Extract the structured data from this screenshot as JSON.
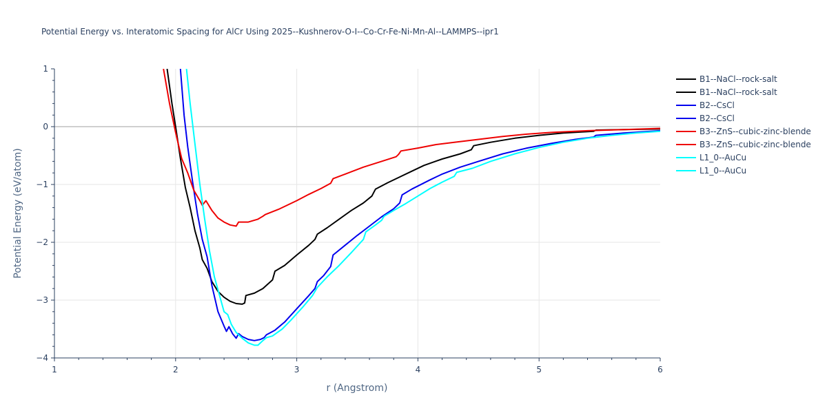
{
  "chart_data": {
    "type": "line",
    "title": "Potential Energy vs. Interatomic Spacing for AlCr Using 2025--Kushnerov-O-I--Co-Cr-Fe-Ni-Mn-Al--LAMMPS--ipr1",
    "xlabel": "r (Angstrom)",
    "ylabel": "Potential Energy (eV/atom)",
    "xlim": [
      1,
      6
    ],
    "ylim": [
      -4,
      1
    ],
    "x_ticks": [
      "1",
      "2",
      "3",
      "4",
      "5",
      "6"
    ],
    "y_ticks": [
      "1",
      "0",
      "−1",
      "−2",
      "−3",
      "−4"
    ],
    "x_tick_values": [
      1,
      2,
      3,
      4,
      5,
      6
    ],
    "y_tick_values": [
      1,
      0,
      -1,
      -2,
      -3,
      -4
    ],
    "grid": true,
    "legend_position": "top-right",
    "series": [
      {
        "name": "B1--NaCl--rock-salt",
        "color": "#000000",
        "points": [
          [
            1.93,
            1.0
          ],
          [
            1.97,
            0.4
          ],
          [
            2.0,
            0.0
          ],
          [
            2.04,
            -0.55
          ],
          [
            2.08,
            -1.05
          ],
          [
            2.12,
            -1.4
          ],
          [
            2.16,
            -1.8
          ],
          [
            2.2,
            -2.1
          ],
          [
            2.22,
            -2.3
          ],
          [
            2.26,
            -2.45
          ],
          [
            2.3,
            -2.68
          ],
          [
            2.35,
            -2.85
          ],
          [
            2.4,
            -2.95
          ],
          [
            2.45,
            -3.02
          ],
          [
            2.5,
            -3.06
          ],
          [
            2.55,
            -3.07
          ],
          [
            2.57,
            -3.05
          ],
          [
            2.58,
            -2.92
          ],
          [
            2.65,
            -2.88
          ],
          [
            2.72,
            -2.8
          ],
          [
            2.8,
            -2.65
          ],
          [
            2.82,
            -2.5
          ],
          [
            2.9,
            -2.4
          ],
          [
            3.0,
            -2.22
          ],
          [
            3.1,
            -2.05
          ],
          [
            3.15,
            -1.95
          ],
          [
            3.17,
            -1.86
          ],
          [
            3.25,
            -1.75
          ],
          [
            3.35,
            -1.6
          ],
          [
            3.45,
            -1.45
          ],
          [
            3.55,
            -1.32
          ],
          [
            3.62,
            -1.2
          ],
          [
            3.65,
            -1.08
          ],
          [
            3.75,
            -0.97
          ],
          [
            3.85,
            -0.87
          ],
          [
            3.95,
            -0.77
          ],
          [
            4.05,
            -0.67
          ],
          [
            4.2,
            -0.56
          ],
          [
            4.35,
            -0.47
          ],
          [
            4.44,
            -0.4
          ],
          [
            4.46,
            -0.33
          ],
          [
            4.6,
            -0.27
          ],
          [
            4.8,
            -0.2
          ],
          [
            5.0,
            -0.15
          ],
          [
            5.2,
            -0.11
          ],
          [
            5.45,
            -0.08
          ],
          [
            5.47,
            -0.06
          ],
          [
            5.7,
            -0.05
          ],
          [
            6.0,
            -0.04
          ]
        ]
      },
      {
        "name": "B1--NaCl--rock-salt",
        "color": "#000000",
        "points": []
      },
      {
        "name": "B2--CsCl",
        "color": "#0000ee",
        "points": [
          [
            2.04,
            1.0
          ],
          [
            2.07,
            0.2
          ],
          [
            2.1,
            -0.35
          ],
          [
            2.14,
            -0.95
          ],
          [
            2.18,
            -1.5
          ],
          [
            2.22,
            -1.95
          ],
          [
            2.26,
            -2.25
          ],
          [
            2.3,
            -2.75
          ],
          [
            2.35,
            -3.2
          ],
          [
            2.4,
            -3.45
          ],
          [
            2.42,
            -3.54
          ],
          [
            2.44,
            -3.46
          ],
          [
            2.47,
            -3.58
          ],
          [
            2.5,
            -3.66
          ],
          [
            2.52,
            -3.58
          ],
          [
            2.55,
            -3.63
          ],
          [
            2.6,
            -3.68
          ],
          [
            2.65,
            -3.7
          ],
          [
            2.7,
            -3.68
          ],
          [
            2.73,
            -3.65
          ],
          [
            2.75,
            -3.6
          ],
          [
            2.82,
            -3.52
          ],
          [
            2.9,
            -3.38
          ],
          [
            3.0,
            -3.15
          ],
          [
            3.1,
            -2.92
          ],
          [
            3.15,
            -2.8
          ],
          [
            3.17,
            -2.68
          ],
          [
            3.22,
            -2.58
          ],
          [
            3.28,
            -2.42
          ],
          [
            3.3,
            -2.22
          ],
          [
            3.4,
            -2.05
          ],
          [
            3.5,
            -1.88
          ],
          [
            3.6,
            -1.72
          ],
          [
            3.7,
            -1.56
          ],
          [
            3.8,
            -1.42
          ],
          [
            3.85,
            -1.32
          ],
          [
            3.87,
            -1.18
          ],
          [
            3.95,
            -1.08
          ],
          [
            4.1,
            -0.92
          ],
          [
            4.2,
            -0.82
          ],
          [
            4.35,
            -0.7
          ],
          [
            4.5,
            -0.6
          ],
          [
            4.7,
            -0.47
          ],
          [
            4.9,
            -0.37
          ],
          [
            5.1,
            -0.29
          ],
          [
            5.3,
            -0.22
          ],
          [
            5.45,
            -0.18
          ],
          [
            5.47,
            -0.15
          ],
          [
            5.7,
            -0.11
          ],
          [
            6.0,
            -0.07
          ]
        ]
      },
      {
        "name": "B2--CsCl",
        "color": "#0000ee",
        "points": []
      },
      {
        "name": "B3--ZnS--cubic-zinc-blende",
        "color": "#ee0000",
        "points": [
          [
            1.9,
            1.0
          ],
          [
            1.95,
            0.4
          ],
          [
            2.0,
            -0.1
          ],
          [
            2.05,
            -0.55
          ],
          [
            2.1,
            -0.8
          ],
          [
            2.15,
            -1.1
          ],
          [
            2.2,
            -1.28
          ],
          [
            2.22,
            -1.36
          ],
          [
            2.25,
            -1.28
          ],
          [
            2.3,
            -1.45
          ],
          [
            2.35,
            -1.58
          ],
          [
            2.4,
            -1.65
          ],
          [
            2.45,
            -1.7
          ],
          [
            2.5,
            -1.72
          ],
          [
            2.52,
            -1.65
          ],
          [
            2.6,
            -1.65
          ],
          [
            2.68,
            -1.6
          ],
          [
            2.72,
            -1.55
          ],
          [
            2.74,
            -1.52
          ],
          [
            2.85,
            -1.43
          ],
          [
            3.0,
            -1.28
          ],
          [
            3.1,
            -1.17
          ],
          [
            3.2,
            -1.07
          ],
          [
            3.28,
            -0.98
          ],
          [
            3.3,
            -0.9
          ],
          [
            3.4,
            -0.82
          ],
          [
            3.55,
            -0.7
          ],
          [
            3.7,
            -0.6
          ],
          [
            3.82,
            -0.52
          ],
          [
            3.84,
            -0.48
          ],
          [
            3.86,
            -0.42
          ],
          [
            4.0,
            -0.37
          ],
          [
            4.15,
            -0.31
          ],
          [
            4.3,
            -0.27
          ],
          [
            4.5,
            -0.22
          ],
          [
            4.7,
            -0.17
          ],
          [
            4.9,
            -0.13
          ],
          [
            5.1,
            -0.1
          ],
          [
            5.4,
            -0.07
          ],
          [
            5.7,
            -0.05
          ],
          [
            6.0,
            -0.03
          ]
        ]
      },
      {
        "name": "B3--ZnS--cubic-zinc-blende",
        "color": "#ee0000",
        "points": []
      },
      {
        "name": "L1_0--AuCu",
        "color": "#00ffff",
        "points": [
          [
            2.09,
            1.0
          ],
          [
            2.12,
            0.4
          ],
          [
            2.16,
            -0.3
          ],
          [
            2.2,
            -1.0
          ],
          [
            2.24,
            -1.6
          ],
          [
            2.28,
            -2.15
          ],
          [
            2.32,
            -2.6
          ],
          [
            2.36,
            -2.9
          ],
          [
            2.4,
            -3.2
          ],
          [
            2.43,
            -3.25
          ],
          [
            2.46,
            -3.42
          ],
          [
            2.5,
            -3.56
          ],
          [
            2.55,
            -3.66
          ],
          [
            2.6,
            -3.74
          ],
          [
            2.65,
            -3.78
          ],
          [
            2.68,
            -3.78
          ],
          [
            2.72,
            -3.7
          ],
          [
            2.75,
            -3.65
          ],
          [
            2.8,
            -3.62
          ],
          [
            2.88,
            -3.5
          ],
          [
            2.95,
            -3.35
          ],
          [
            3.05,
            -3.12
          ],
          [
            3.13,
            -2.92
          ],
          [
            3.17,
            -2.78
          ],
          [
            3.25,
            -2.6
          ],
          [
            3.35,
            -2.4
          ],
          [
            3.45,
            -2.18
          ],
          [
            3.55,
            -1.95
          ],
          [
            3.57,
            -1.82
          ],
          [
            3.65,
            -1.7
          ],
          [
            3.7,
            -1.62
          ],
          [
            3.72,
            -1.55
          ],
          [
            3.8,
            -1.45
          ],
          [
            3.9,
            -1.33
          ],
          [
            4.0,
            -1.2
          ],
          [
            4.1,
            -1.07
          ],
          [
            4.2,
            -0.96
          ],
          [
            4.3,
            -0.86
          ],
          [
            4.32,
            -0.79
          ],
          [
            4.45,
            -0.72
          ],
          [
            4.6,
            -0.6
          ],
          [
            4.8,
            -0.47
          ],
          [
            5.0,
            -0.36
          ],
          [
            5.2,
            -0.27
          ],
          [
            5.4,
            -0.2
          ],
          [
            5.6,
            -0.15
          ],
          [
            5.8,
            -0.11
          ],
          [
            6.0,
            -0.08
          ]
        ]
      },
      {
        "name": "L1_0--AuCu",
        "color": "#00ffff",
        "points": []
      }
    ]
  }
}
